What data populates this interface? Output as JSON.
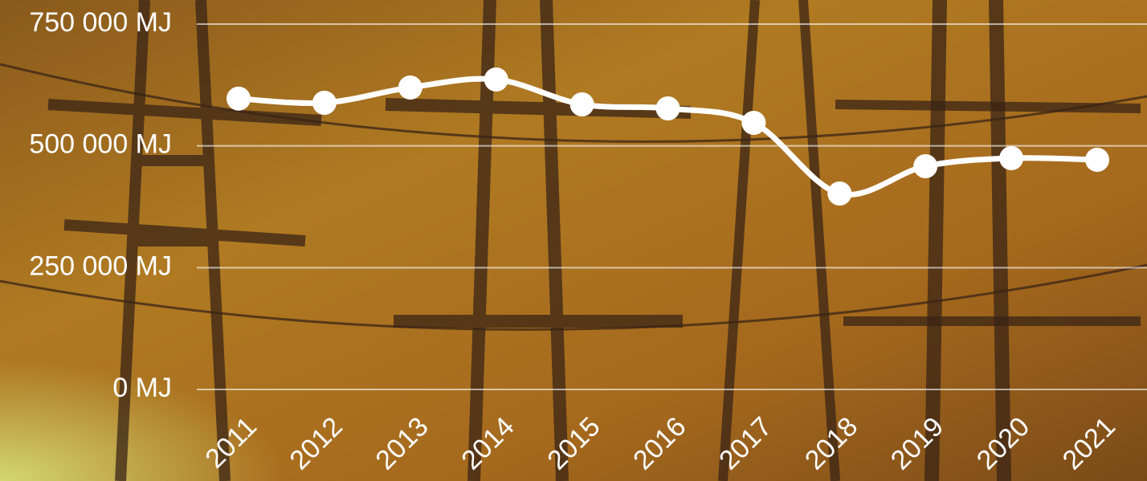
{
  "chart_data": {
    "type": "line",
    "categories": [
      "2011",
      "2012",
      "2013",
      "2014",
      "2015",
      "2016",
      "2017",
      "2018",
      "2019",
      "2020",
      "2021"
    ],
    "series": [
      {
        "color": "#ffffff",
        "values": [
          597000,
          588500,
          619800,
          636300,
          585200,
          576900,
          547300,
          402200,
          458200,
          474700,
          471400
        ]
      }
    ],
    "ylim": [
      0,
      750000
    ],
    "yticks": [
      {
        "value": 0,
        "label": "0 MJ"
      },
      {
        "value": 250000,
        "label": "250 000 MJ"
      },
      {
        "value": 500000,
        "label": "500 000 MJ"
      },
      {
        "value": 750000,
        "label": "750 000 MJ"
      }
    ],
    "grid": true
  }
}
